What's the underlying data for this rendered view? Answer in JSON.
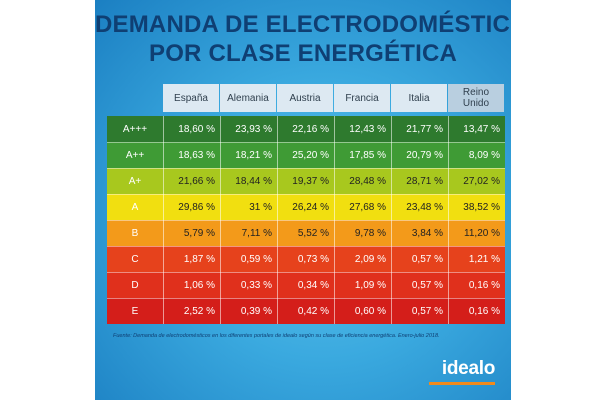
{
  "title_lines": [
    "DEMANDA DE ELECTRODOMÉSTICOS",
    "POR CLASE ENERGÉTICA"
  ],
  "colors": {
    "A+++": "#2e7a2e",
    "A++": "#3f9b35",
    "A+": "#a8c81e",
    "A": "#f1df10",
    "B": "#f39a1a",
    "C": "#e6421c",
    "D": "#e0301c",
    "E": "#d41e1a"
  },
  "chart_data": {
    "type": "table",
    "title": "DEMANDA DE ELECTRODOMÉSTICOS POR CLASE ENERGÉTICA",
    "columns": [
      "España",
      "Alemania",
      "Austria",
      "Francia",
      "Italia",
      "Reino Unido"
    ],
    "rows": [
      {
        "class": "A+++",
        "values": [
          "18,60 %",
          "23,93 %",
          "22,16 %",
          "12,43 %",
          "21,77 %",
          "13,47 %"
        ]
      },
      {
        "class": "A++",
        "values": [
          "18,63 %",
          "18,21 %",
          "25,20 %",
          "17,85 %",
          "20,79 %",
          "8,09 %"
        ]
      },
      {
        "class": "A+",
        "values": [
          "21,66 %",
          "18,44 %",
          "19,37 %",
          "28,48 %",
          "28,71 %",
          "27,02 %"
        ]
      },
      {
        "class": "A",
        "values": [
          "29,86 %",
          "31 %",
          "26,24 %",
          "27,68 %",
          "23,48 %",
          "38,52 %"
        ]
      },
      {
        "class": "B",
        "values": [
          "5,79 %",
          "7,11 %",
          "5,52 %",
          "9,78 %",
          "3,84 %",
          "11,20 %"
        ]
      },
      {
        "class": "C",
        "values": [
          "1,87 %",
          "0,59 %",
          "0,73 %",
          "2,09 %",
          "0,57 %",
          "1,21 %"
        ]
      },
      {
        "class": "D",
        "values": [
          "1,06 %",
          "0,33 %",
          "0,34 %",
          "1,09 %",
          "0,57 %",
          "0,16 %"
        ]
      },
      {
        "class": "E",
        "values": [
          "2,52 %",
          "0,39 %",
          "0,42 %",
          "0,60 %",
          "0,57 %",
          "0,16 %"
        ]
      }
    ]
  },
  "source_text": "Fuente: Demanda de electrodomésticos en los diferentes portales de idealo según su clase de eficiencia energética. Enero-julio 2018.",
  "logo_text": "idealo"
}
